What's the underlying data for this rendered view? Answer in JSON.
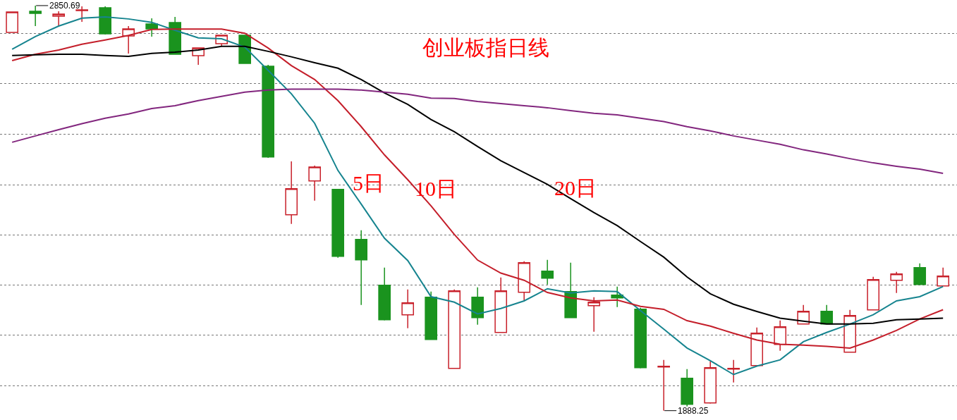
{
  "chart_data": {
    "type": "candlestick",
    "title": "创业板指日线",
    "categories": [
      null,
      null,
      null,
      null,
      null,
      null,
      null,
      null,
      null,
      null,
      null,
      null,
      null,
      null,
      null,
      null,
      null,
      null,
      null,
      null,
      null,
      null,
      null,
      null,
      null,
      null,
      null,
      null,
      null,
      null,
      null,
      null,
      null,
      null,
      null,
      null,
      null,
      null,
      null,
      null,
      null
    ],
    "ohlc": [
      [
        2787.1,
        2835.6,
        2787.1,
        2835.6
      ],
      [
        2837.3,
        2850.69,
        2802.1,
        2832.3
      ],
      [
        2825.6,
        2837.3,
        2802.1,
        2830.6
      ],
      [
        2839.0,
        2849.0,
        2812.2,
        2840.6
      ],
      [
        2845.7,
        2849.0,
        2782.1,
        2783.7
      ],
      [
        2778.7,
        2802.1,
        2736.9,
        2795.4
      ],
      [
        2807.2,
        2820.6,
        2777.0,
        2795.4
      ],
      [
        2810.5,
        2823.9,
        2735.2,
        2735.2
      ],
      [
        2731.9,
        2750.3,
        2710.0,
        2750.3
      ],
      [
        2760.3,
        2780.4,
        2755.3,
        2780.4
      ],
      [
        2780.4,
        2780.4,
        2713.3,
        2713.3
      ],
      [
        2706.7,
        2710.0,
        2489.1,
        2490.8
      ],
      [
        2353.5,
        2480.7,
        2331.8,
        2415.5
      ],
      [
        2433.9,
        2470.7,
        2387.0,
        2467.3
      ],
      [
        2413.8,
        2413.8,
        2251.4,
        2254.9
      ],
      [
        2294.9,
        2316.7,
        2139.3,
        2246.4
      ],
      [
        2186.1,
        2228.0,
        2102.5,
        2104.1
      ],
      [
        2115.9,
        2176.1,
        2084.0,
        2144.3
      ],
      [
        2157.6,
        2171.0,
        2057.4,
        2057.4
      ],
      [
        1988.6,
        2176.1,
        1988.6,
        2172.7
      ],
      [
        2157.6,
        2181.1,
        2092.4,
        2109.2
      ],
      [
        2074.0,
        2204.6,
        2074.0,
        2172.7
      ],
      [
        2169.4,
        2243.1,
        2149.3,
        2239.7
      ],
      [
        2219.6,
        2246.4,
        2187.8,
        2202.9
      ],
      [
        2171.0,
        2239.7,
        2109.2,
        2109.2
      ],
      [
        2137.6,
        2157.6,
        2075.7,
        2145.9
      ],
      [
        2162.7,
        2182.7,
        2134.3,
        2156.0
      ],
      [
        2129.3,
        2132.6,
        1988.6,
        1990.3
      ],
      [
        1992.0,
        2008.7,
        1888.25,
        1993.6
      ],
      [
        1965.2,
        1987.0,
        1898.2,
        1903.2
      ],
      [
        1906.6,
        2005.4,
        1904.9,
        1990.3
      ],
      [
        1987.0,
        2008.7,
        1955.1,
        1988.6
      ],
      [
        1995.4,
        2085.7,
        1995.4,
        2072.3
      ],
      [
        2045.5,
        2102.5,
        2030.5,
        2087.4
      ],
      [
        2094.1,
        2139.3,
        2094.1,
        2124.2
      ],
      [
        2124.2,
        2139.3,
        2094.1,
        2094.1
      ],
      [
        2027.1,
        2127.6,
        2027.1,
        2114.2
      ],
      [
        2127.6,
        2206.2,
        2127.6,
        2199.5
      ],
      [
        2197.8,
        2217.9,
        2167.7,
        2212.9
      ],
      [
        2228.0,
        2238.0,
        2187.8,
        2187.8
      ],
      [
        2184.4,
        2228.0,
        2184.4,
        2207.9
      ]
    ],
    "series": [
      {
        "type": "line",
        "name": "5日",
        "color": "#16848f",
        "values": [
          2747,
          2777,
          2802,
          2821,
          2824,
          2819,
          2811,
          2792,
          2774,
          2772,
          2752,
          2697,
          2641,
          2571,
          2459,
          2379,
          2298,
          2245,
          2159,
          2146,
          2118,
          2131,
          2149,
          2178,
          2168,
          2173,
          2171,
          2126,
          2082,
          2037,
          2007,
          1974,
          1994,
          2009,
          2052,
          2074,
          2094,
          2116,
          2149,
          2159,
          2183
        ]
      },
      {
        "type": "line",
        "name": "10日",
        "color": "#c41e2a",
        "values": [
          2720,
          2735,
          2745,
          2759,
          2769,
          2780,
          2794,
          2795,
          2795,
          2795,
          2785,
          2750,
          2708,
          2675,
          2625,
          2563,
          2496,
          2437,
          2375,
          2307,
          2246,
          2215,
          2198,
          2169,
          2156,
          2149,
          2151,
          2136,
          2129,
          2102,
          2089,
          2072,
          2056,
          2046,
          2044,
          2041,
          2037,
          2056,
          2079,
          2106,
          2128
        ]
      },
      {
        "type": "line",
        "name": "20日",
        "color": "#000000",
        "values": [
          2732,
          2734,
          2735,
          2735,
          2732,
          2730,
          2737,
          2740,
          2745,
          2754,
          2754,
          2742,
          2729,
          2715,
          2702,
          2675,
          2643,
          2616,
          2580,
          2551,
          2516,
          2482,
          2454,
          2426,
          2392,
          2359,
          2328,
          2290,
          2253,
          2206,
          2166,
          2141,
          2124,
          2108,
          2101,
          2094,
          2094,
          2096,
          2104,
          2106,
          2108
        ]
      },
      {
        "type": "line",
        "color": "#82267e",
        "values": [
          2526,
          2541,
          2556,
          2570,
          2583,
          2593,
          2606,
          2613,
          2625,
          2635,
          2645,
          2650,
          2652,
          2652,
          2652,
          2650,
          2645,
          2640,
          2631,
          2630,
          2623,
          2618,
          2613,
          2608,
          2601,
          2595,
          2591,
          2583,
          2575,
          2563,
          2553,
          2541,
          2531,
          2521,
          2508,
          2498,
          2487,
          2477,
          2469,
          2462,
          2452
        ]
      }
    ],
    "annotations": [
      "2850.69",
      "1888.25"
    ],
    "ylim": [
      1866,
      2864
    ],
    "yticks": [
      {
        "value": 2784,
        "label": null
      },
      {
        "value": 2665,
        "label": null
      },
      {
        "value": 2545,
        "label": null
      },
      {
        "value": 2425,
        "label": null
      },
      {
        "value": 2306,
        "label": null
      },
      {
        "value": 2186,
        "label": null
      },
      {
        "value": 2067,
        "label": null
      },
      {
        "value": 1948,
        "label": null
      }
    ],
    "grid": "y",
    "legend": false,
    "tick_labels": false
  }
}
